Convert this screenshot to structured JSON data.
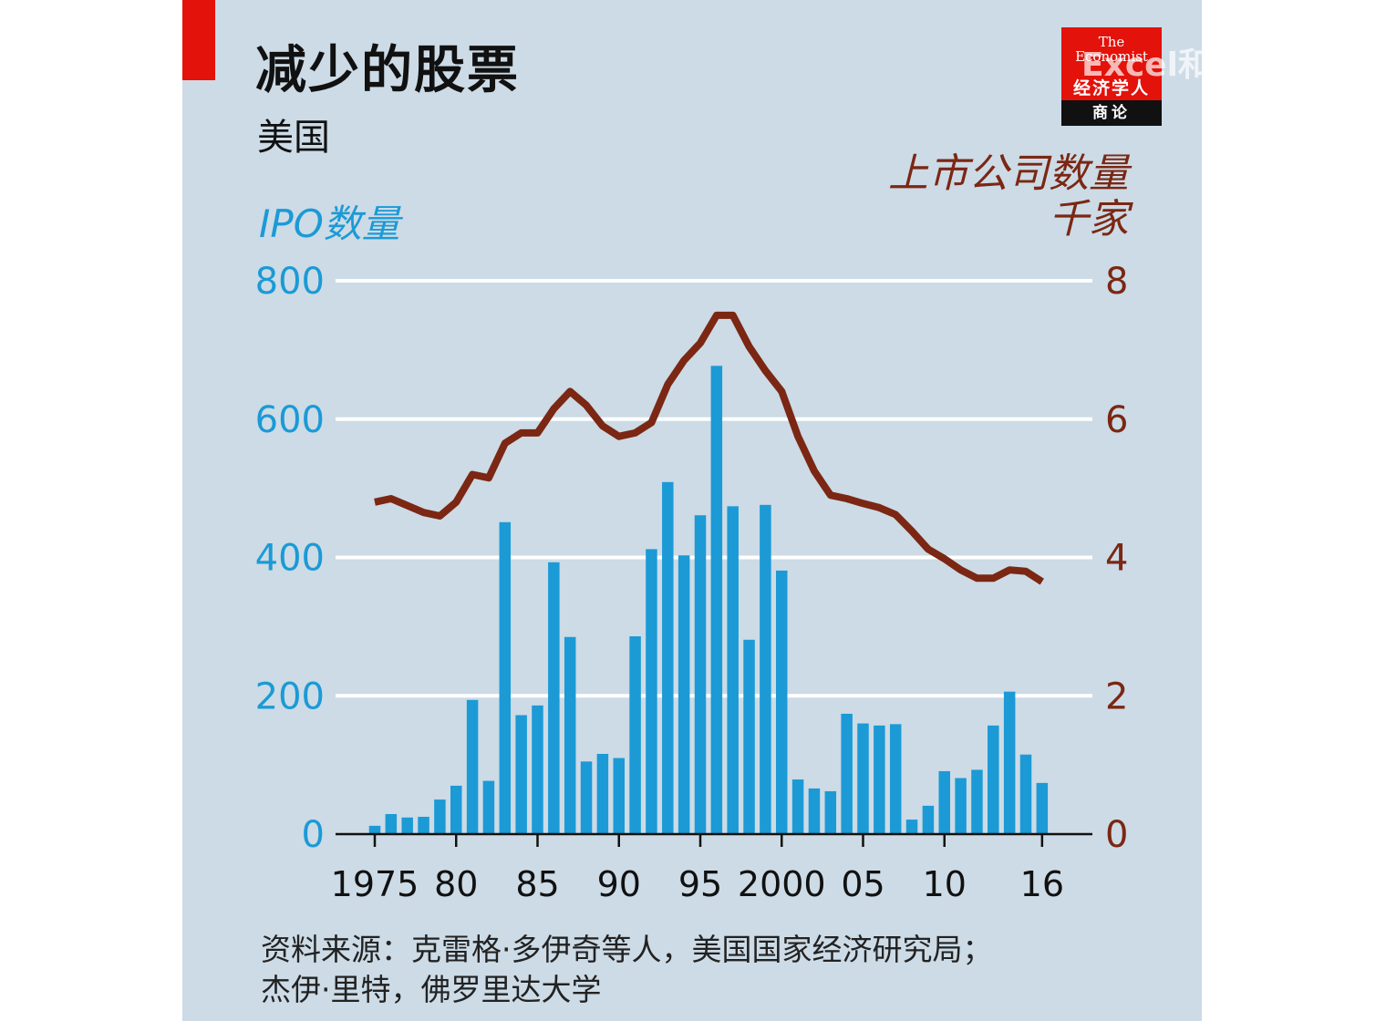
{
  "header": {
    "title": "减少的股票",
    "subtitle": "美国"
  },
  "logo": {
    "brand": "The Economist",
    "cn_name": "经济学人",
    "section": "商论"
  },
  "watermark": "Excel和PowerBI",
  "source": {
    "line1": "资料来源：克雷格·多伊奇等人，美国国家经济研究局；",
    "line2": "杰伊·里特，佛罗里达大学"
  },
  "colors": {
    "bars": "#1b9ad6",
    "line": "#7b2713",
    "background": "#ccdbe6",
    "accent": "#e3120b"
  },
  "chart_data": {
    "type": "bar",
    "left_axis": {
      "label": "IPO数量",
      "ylim": [
        0,
        800
      ],
      "ticks": [
        "0",
        "200",
        "400",
        "600",
        "800"
      ]
    },
    "right_axis": {
      "label_line1": "上市公司数量",
      "label_line2": "千家",
      "ylim": [
        0,
        8
      ],
      "ticks": [
        "0",
        "2",
        "4",
        "6",
        "8"
      ]
    },
    "x_ticks": [
      {
        "year": 1975,
        "label": "1975"
      },
      {
        "year": 1980,
        "label": "80"
      },
      {
        "year": 1985,
        "label": "85"
      },
      {
        "year": 1990,
        "label": "90"
      },
      {
        "year": 1995,
        "label": "95"
      },
      {
        "year": 2000,
        "label": "2000"
      },
      {
        "year": 2005,
        "label": "05"
      },
      {
        "year": 2010,
        "label": "10"
      },
      {
        "year": 2016,
        "label": "16"
      }
    ],
    "grid": true,
    "series": [
      {
        "name": "IPO数量",
        "type": "bar",
        "axis": "left",
        "x": [
          1975,
          1976,
          1977,
          1978,
          1979,
          1980,
          1981,
          1982,
          1983,
          1984,
          1985,
          1986,
          1987,
          1988,
          1989,
          1990,
          1991,
          1992,
          1993,
          1994,
          1995,
          1996,
          1997,
          1998,
          1999,
          2000,
          2001,
          2002,
          2003,
          2004,
          2005,
          2006,
          2007,
          2008,
          2009,
          2010,
          2011,
          2012,
          2013,
          2014,
          2015,
          2016
        ],
        "values": [
          12,
          29,
          24,
          25,
          50,
          70,
          194,
          77,
          451,
          172,
          186,
          393,
          285,
          105,
          116,
          110,
          286,
          412,
          509,
          403,
          461,
          677,
          474,
          281,
          476,
          381,
          79,
          66,
          62,
          174,
          160,
          157,
          159,
          21,
          41,
          91,
          81,
          93,
          157,
          206,
          115,
          74
        ]
      },
      {
        "name": "上市公司数量",
        "type": "line",
        "axis": "right",
        "x": [
          1975,
          1976,
          1977,
          1978,
          1979,
          1980,
          1981,
          1982,
          1983,
          1984,
          1985,
          1986,
          1987,
          1988,
          1989,
          1990,
          1991,
          1992,
          1993,
          1994,
          1995,
          1996,
          1997,
          1998,
          1999,
          2000,
          2001,
          2002,
          2003,
          2004,
          2005,
          2006,
          2007,
          2008,
          2009,
          2010,
          2011,
          2012,
          2013,
          2014,
          2015,
          2016
        ],
        "values": [
          4.8,
          4.85,
          4.75,
          4.65,
          4.6,
          4.8,
          5.2,
          5.15,
          5.65,
          5.8,
          5.8,
          6.15,
          6.4,
          6.2,
          5.9,
          5.75,
          5.8,
          5.95,
          6.5,
          6.85,
          7.1,
          7.5,
          7.5,
          7.05,
          6.7,
          6.4,
          5.75,
          5.25,
          4.9,
          4.85,
          4.78,
          4.72,
          4.62,
          4.38,
          4.12,
          3.98,
          3.82,
          3.7,
          3.7,
          3.82,
          3.8,
          3.65
        ]
      }
    ]
  }
}
